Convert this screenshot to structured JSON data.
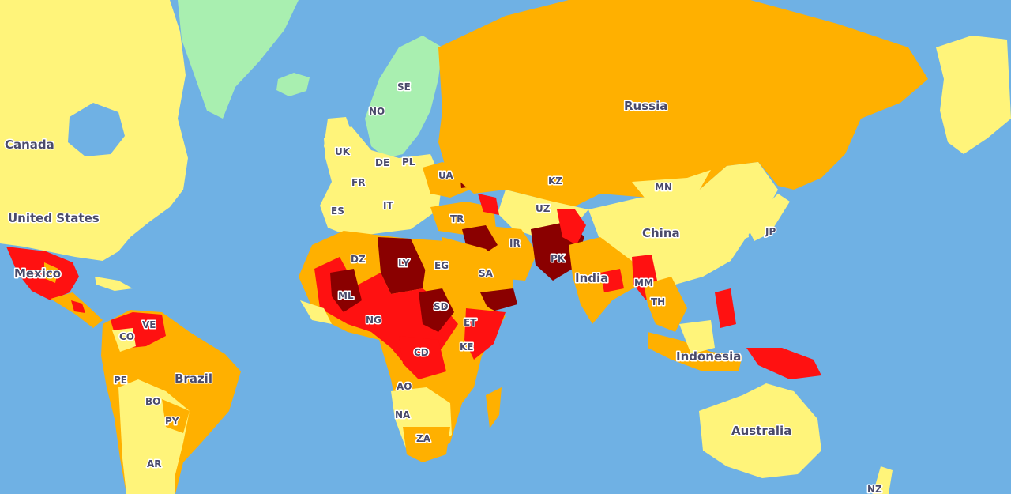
{
  "map": {
    "colors": {
      "ocean": "#6fb1e4",
      "insignificant": "#a9efb0",
      "low": "#fff47a",
      "medium": "#ffb000",
      "high": "#ff1111",
      "extreme": "#8a0000"
    },
    "labels": {
      "canada": "Canada",
      "united_states": "United States",
      "mexico": "Mexico",
      "brazil": "Brazil",
      "russia": "Russia",
      "china": "China",
      "india": "India",
      "indonesia": "Indonesia",
      "australia": "Australia",
      "se": "SE",
      "no": "NO",
      "uk": "UK",
      "de": "DE",
      "pl": "PL",
      "fr": "FR",
      "ua": "UA",
      "es": "ES",
      "it": "IT",
      "kz": "KZ",
      "mn": "MN",
      "uz": "UZ",
      "tr": "TR",
      "jp": "JP",
      "ir": "IR",
      "dz": "DZ",
      "ly": "LY",
      "eg": "EG",
      "sa": "SA",
      "pk": "PK",
      "mm": "MM",
      "ml": "ML",
      "sd": "SD",
      "th": "TH",
      "ng": "NG",
      "et": "ET",
      "ve": "VE",
      "co": "CO",
      "ke": "KE",
      "cd": "CD",
      "pe": "PE",
      "ao": "AO",
      "bo": "BO",
      "na": "NA",
      "py": "PY",
      "za": "ZA",
      "ar": "AR",
      "nz": "NZ"
    }
  }
}
